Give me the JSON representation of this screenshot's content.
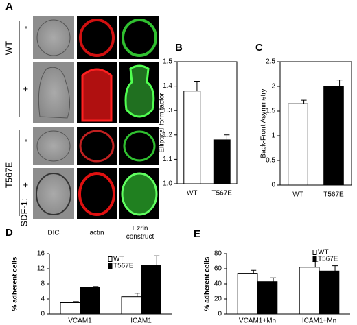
{
  "panel_a": {
    "label": "A",
    "row_groups": [
      {
        "name": "WT",
        "rows": [
          "-",
          "+"
        ]
      },
      {
        "name": "T567E",
        "rows": [
          "-",
          "+"
        ]
      }
    ],
    "row_title": "SDF-1:",
    "columns": [
      "DIC",
      "actin",
      "Ezrin construct"
    ]
  },
  "chart_data": [
    {
      "type": "bar",
      "label": "B",
      "y_label": "Elliptical form factor",
      "categories": [
        "WT",
        "T567E"
      ],
      "values": [
        1.38,
        1.18
      ],
      "errors": [
        0.04,
        0.02
      ],
      "colors": [
        "#ffffff",
        "#000000"
      ],
      "ylim": [
        1.0,
        1.5
      ],
      "yticks": [
        {
          "value": 1,
          "label": "1.0"
        },
        1.1,
        1.2,
        1.3,
        1.4,
        1.5
      ],
      "frame": true
    },
    {
      "type": "bar",
      "label": "C",
      "y_label": "Back-Front Asymmetry",
      "categories": [
        "WT",
        "T567E"
      ],
      "values": [
        1.65,
        2.0
      ],
      "errors": [
        0.07,
        0.13
      ],
      "colors": [
        "#ffffff",
        "#000000"
      ],
      "ylim": [
        0,
        2.5
      ],
      "yticks": [
        0,
        0.5,
        1,
        1.5,
        2,
        2.5
      ],
      "frame": true
    },
    {
      "type": "grouped-bar",
      "label": "D",
      "y_label": "% adherent cells",
      "categories": [
        "VCAM1",
        "ICAM1"
      ],
      "series": [
        {
          "name": "WT",
          "color": "#ffffff",
          "values": [
            3,
            4.6
          ],
          "errors": [
            0.3,
            0.9
          ]
        },
        {
          "name": "T567E",
          "color": "#000000",
          "values": [
            7,
            13
          ],
          "errors": [
            0.3,
            2.4
          ]
        }
      ],
      "ylim": [
        0,
        16
      ],
      "yticks": [
        0,
        4,
        8,
        12,
        16
      ],
      "frame": false
    },
    {
      "type": "grouped-bar",
      "label": "E",
      "y_label": "% adherent cells",
      "categories": [
        "VCAM1+Mn",
        "ICAM1+Mn"
      ],
      "series": [
        {
          "name": "WT",
          "color": "#ffffff",
          "values": [
            54,
            62
          ],
          "errors": [
            4,
            8
          ]
        },
        {
          "name": "T567E",
          "color": "#000000",
          "values": [
            43,
            57
          ],
          "errors": [
            5,
            7
          ]
        }
      ],
      "ylim": [
        0,
        80
      ],
      "yticks": [
        0,
        20,
        40,
        60,
        80
      ],
      "frame": false
    }
  ]
}
